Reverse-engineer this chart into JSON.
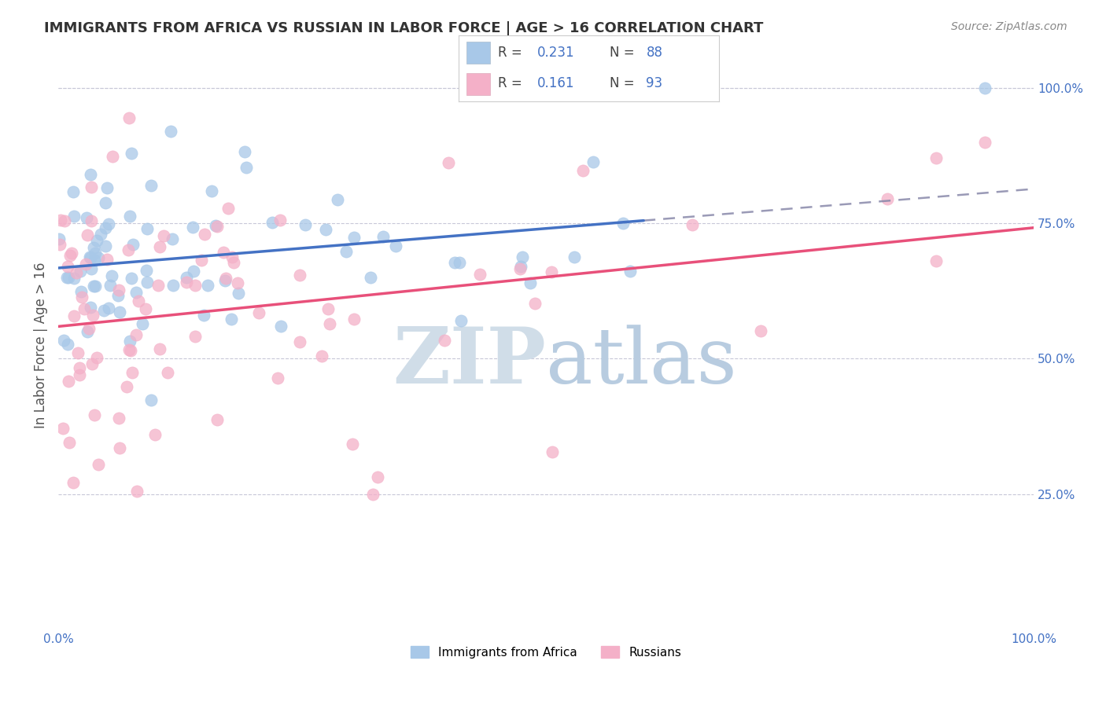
{
  "title": "IMMIGRANTS FROM AFRICA VS RUSSIAN IN LABOR FORCE | AGE > 16 CORRELATION CHART",
  "source": "Source: ZipAtlas.com",
  "ylabel": "In Labor Force | Age > 16",
  "xlim": [
    0.0,
    1.0
  ],
  "ylim": [
    0.0,
    1.05
  ],
  "y_tick_positions": [
    0.25,
    0.5,
    0.75,
    1.0
  ],
  "y_tick_labels": [
    "25.0%",
    "50.0%",
    "75.0%",
    "100.0%"
  ],
  "legend1_R": "0.231",
  "legend1_N": "88",
  "legend2_R": "0.161",
  "legend2_N": "93",
  "africa_scatter_color": "#A8C8E8",
  "russia_scatter_color": "#F4B0C8",
  "africa_line_color": "#4472C4",
  "russia_line_color": "#E8507A",
  "dashed_line_color": "#8888AA",
  "background_color": "#FFFFFF",
  "grid_color": "#C8C8D8",
  "watermark_color": "#C8D8E8",
  "title_color": "#333333",
  "source_color": "#888888",
  "axis_label_color": "#555555",
  "tick_color": "#4472C4",
  "seed": 12345
}
